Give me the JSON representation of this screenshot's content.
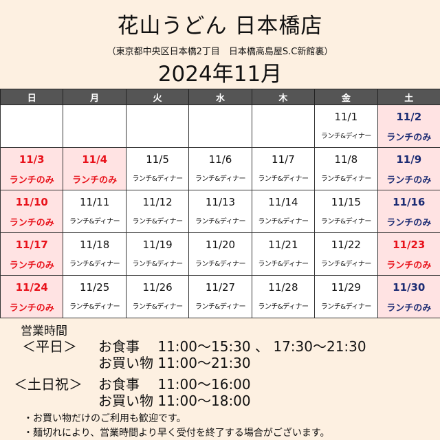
{
  "header": {
    "title": "花山うどん 日本橋店",
    "address": "（東京都中央区日本橋2丁目　日本橋高島屋S.C新館裏）",
    "month": "2024年11月"
  },
  "colors": {
    "header_bg": "#555555",
    "holiday_bg": "#ffe3e3",
    "holiday_red": "#e8111a",
    "saturday_navy": "#1b2b73"
  },
  "calendar": {
    "weekdays": [
      "日",
      "月",
      "火",
      "水",
      "木",
      "金",
      "土"
    ],
    "weeks": [
      [
        null,
        null,
        null,
        null,
        null,
        {
          "date": "11/1",
          "label": "ランチ&ディナー",
          "type": "normal"
        },
        {
          "date": "11/2",
          "label": "ランチのみ",
          "type": "saturday"
        }
      ],
      [
        {
          "date": "11/3",
          "label": "ランチのみ",
          "type": "holiday"
        },
        {
          "date": "11/4",
          "label": "ランチのみ",
          "type": "holiday"
        },
        {
          "date": "11/5",
          "label": "ランチ&ディナー",
          "type": "normal"
        },
        {
          "date": "11/6",
          "label": "ランチ&ディナー",
          "type": "normal"
        },
        {
          "date": "11/7",
          "label": "ランチ&ディナー",
          "type": "normal"
        },
        {
          "date": "11/8",
          "label": "ランチ&ディナー",
          "type": "normal"
        },
        {
          "date": "11/9",
          "label": "ランチのみ",
          "type": "saturday"
        }
      ],
      [
        {
          "date": "11/10",
          "label": "ランチのみ",
          "type": "holiday"
        },
        {
          "date": "11/11",
          "label": "ランチ&ディナー",
          "type": "normal"
        },
        {
          "date": "11/12",
          "label": "ランチ&ディナー",
          "type": "normal"
        },
        {
          "date": "11/13",
          "label": "ランチ&ディナー",
          "type": "normal"
        },
        {
          "date": "11/14",
          "label": "ランチ&ディナー",
          "type": "normal"
        },
        {
          "date": "11/15",
          "label": "ランチ&ディナー",
          "type": "normal"
        },
        {
          "date": "11/16",
          "label": "ランチのみ",
          "type": "saturday"
        }
      ],
      [
        {
          "date": "11/17",
          "label": "ランチのみ",
          "type": "holiday"
        },
        {
          "date": "11/18",
          "label": "ランチ&ディナー",
          "type": "normal"
        },
        {
          "date": "11/19",
          "label": "ランチ&ディナー",
          "type": "normal"
        },
        {
          "date": "11/20",
          "label": "ランチ&ディナー",
          "type": "normal"
        },
        {
          "date": "11/21",
          "label": "ランチ&ディナー",
          "type": "normal"
        },
        {
          "date": "11/22",
          "label": "ランチ&ディナー",
          "type": "normal"
        },
        {
          "date": "11/23",
          "label": "ランチのみ",
          "type": "holiday"
        }
      ],
      [
        {
          "date": "11/24",
          "label": "ランチのみ",
          "type": "holiday"
        },
        {
          "date": "11/25",
          "label": "ランチ&ディナー",
          "type": "normal"
        },
        {
          "date": "11/26",
          "label": "ランチ&ディナー",
          "type": "normal"
        },
        {
          "date": "11/27",
          "label": "ランチ&ディナー",
          "type": "normal"
        },
        {
          "date": "11/28",
          "label": "ランチ&ディナー",
          "type": "normal"
        },
        {
          "date": "11/29",
          "label": "ランチ&ディナー",
          "type": "normal"
        },
        {
          "date": "11/30",
          "label": "ランチのみ",
          "type": "saturday"
        }
      ]
    ]
  },
  "hours": {
    "title": "営業時間",
    "weekday": {
      "label": "＜平日＞",
      "meal": "お食事　 11:00〜15:30 、 17:30〜21:30",
      "shop": "お買い物  11:00〜21:30"
    },
    "weekend": {
      "label": "＜土日祝＞",
      "meal": "お食事　 11:00〜16:00",
      "shop": "お買い物  11:00〜18:00"
    },
    "notes": [
      "・お買い物だけのご利用も歓迎です。",
      "・麺切れにより、営業時間より早く受付を終了する場合がございます。"
    ]
  }
}
